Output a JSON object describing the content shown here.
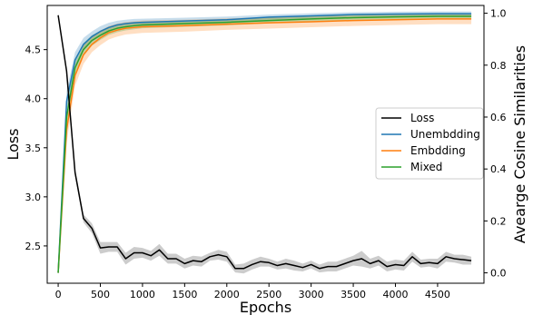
{
  "chart_data": {
    "type": "line",
    "xlabel": "Epochs",
    "ylabel_left": "Loss",
    "ylabel_right": "Avearge Cosine Similarities",
    "xlim": [
      -130,
      5050
    ],
    "ylim_left": [
      2.12,
      4.95
    ],
    "ylim_right": [
      -0.04,
      1.03
    ],
    "xticks": [
      0,
      500,
      1000,
      1500,
      2000,
      2500,
      3000,
      3500,
      4000,
      4500
    ],
    "yticks_left": [
      2.5,
      3.0,
      3.5,
      4.0,
      4.5
    ],
    "yticks_right": [
      0.0,
      0.2,
      0.4,
      0.6,
      0.8,
      1.0
    ],
    "ytick_labels_left": [
      "2.5",
      "3.0",
      "3.5",
      "4.0",
      "4.5"
    ],
    "ytick_labels_right": [
      "0.0",
      "0.2",
      "0.4",
      "0.6",
      "0.8",
      "1.0"
    ],
    "legend_position": "center-right",
    "grid": false,
    "series": [
      {
        "name": "Loss",
        "axis": "left",
        "color": "#000000",
        "band_color": "#7f7f7f",
        "x": [
          0,
          100,
          200,
          300,
          400,
          500,
          600,
          700,
          800,
          900,
          1000,
          1100,
          1200,
          1300,
          1400,
          1500,
          1600,
          1700,
          1800,
          1900,
          2000,
          2100,
          2200,
          2300,
          2400,
          2500,
          2600,
          2700,
          2800,
          2900,
          3000,
          3100,
          3200,
          3300,
          3400,
          3500,
          3600,
          3700,
          3800,
          3900,
          4000,
          4100,
          4200,
          4300,
          4400,
          4500,
          4600,
          4700,
          4800,
          4900
        ],
        "y": [
          4.85,
          4.28,
          3.25,
          2.78,
          2.68,
          2.48,
          2.49,
          2.49,
          2.37,
          2.43,
          2.43,
          2.4,
          2.46,
          2.37,
          2.37,
          2.32,
          2.35,
          2.34,
          2.39,
          2.41,
          2.39,
          2.27,
          2.27,
          2.31,
          2.34,
          2.33,
          2.3,
          2.32,
          2.3,
          2.28,
          2.31,
          2.27,
          2.29,
          2.29,
          2.32,
          2.35,
          2.37,
          2.32,
          2.35,
          2.29,
          2.31,
          2.3,
          2.39,
          2.32,
          2.33,
          2.32,
          2.39,
          2.37,
          2.36,
          2.35
        ],
        "spread": [
          0.02,
          0.03,
          0.04,
          0.04,
          0.05,
          0.06,
          0.05,
          0.05,
          0.06,
          0.06,
          0.05,
          0.05,
          0.06,
          0.05,
          0.05,
          0.05,
          0.05,
          0.05,
          0.04,
          0.05,
          0.05,
          0.04,
          0.05,
          0.05,
          0.05,
          0.04,
          0.04,
          0.05,
          0.05,
          0.04,
          0.04,
          0.04,
          0.05,
          0.05,
          0.05,
          0.05,
          0.08,
          0.05,
          0.05,
          0.05,
          0.05,
          0.05,
          0.05,
          0.04,
          0.04,
          0.05,
          0.05,
          0.04,
          0.05,
          0.04
        ]
      },
      {
        "name": "Unembdding",
        "axis": "right",
        "color": "#1f77b4",
        "band_color": "#1f77b4",
        "x": [
          0,
          100,
          200,
          300,
          400,
          500,
          600,
          700,
          800,
          900,
          1000,
          1500,
          2000,
          2500,
          3000,
          3500,
          4000,
          4500,
          4900
        ],
        "y": [
          0.0,
          0.66,
          0.82,
          0.88,
          0.91,
          0.93,
          0.945,
          0.955,
          0.96,
          0.963,
          0.965,
          0.97,
          0.975,
          0.985,
          0.99,
          0.995,
          0.997,
          0.998,
          0.998
        ],
        "spread": [
          0.0,
          0.04,
          0.03,
          0.025,
          0.02,
          0.02,
          0.018,
          0.016,
          0.015,
          0.015,
          0.014,
          0.013,
          0.012,
          0.01,
          0.01,
          0.009,
          0.009,
          0.009,
          0.009
        ]
      },
      {
        "name": "Embdding",
        "axis": "right",
        "color": "#ff7f0e",
        "band_color": "#ff7f0e",
        "x": [
          0,
          100,
          200,
          300,
          400,
          500,
          600,
          700,
          800,
          900,
          1000,
          1500,
          2000,
          2500,
          3000,
          3500,
          4000,
          4500,
          4900
        ],
        "y": [
          0.0,
          0.55,
          0.76,
          0.84,
          0.88,
          0.905,
          0.925,
          0.935,
          0.942,
          0.945,
          0.948,
          0.952,
          0.958,
          0.963,
          0.967,
          0.972,
          0.975,
          0.978,
          0.978
        ],
        "spread": [
          0.0,
          0.05,
          0.04,
          0.035,
          0.03,
          0.028,
          0.026,
          0.025,
          0.024,
          0.024,
          0.024,
          0.023,
          0.022,
          0.022,
          0.021,
          0.021,
          0.02,
          0.02,
          0.02
        ]
      },
      {
        "name": "Mixed",
        "axis": "right",
        "color": "#2ca02c",
        "band_color": "#2ca02c",
        "x": [
          0,
          100,
          200,
          300,
          400,
          500,
          600,
          700,
          800,
          900,
          1000,
          1500,
          2000,
          2500,
          3000,
          3500,
          4000,
          4500,
          4900
        ],
        "y": [
          0.0,
          0.6,
          0.79,
          0.86,
          0.895,
          0.915,
          0.932,
          0.942,
          0.948,
          0.952,
          0.955,
          0.96,
          0.965,
          0.972,
          0.978,
          0.983,
          0.986,
          0.988,
          0.988
        ],
        "spread": [
          0.0,
          0.04,
          0.03,
          0.025,
          0.02,
          0.018,
          0.016,
          0.015,
          0.014,
          0.014,
          0.013,
          0.012,
          0.012,
          0.011,
          0.011,
          0.01,
          0.01,
          0.01,
          0.01
        ]
      }
    ]
  }
}
